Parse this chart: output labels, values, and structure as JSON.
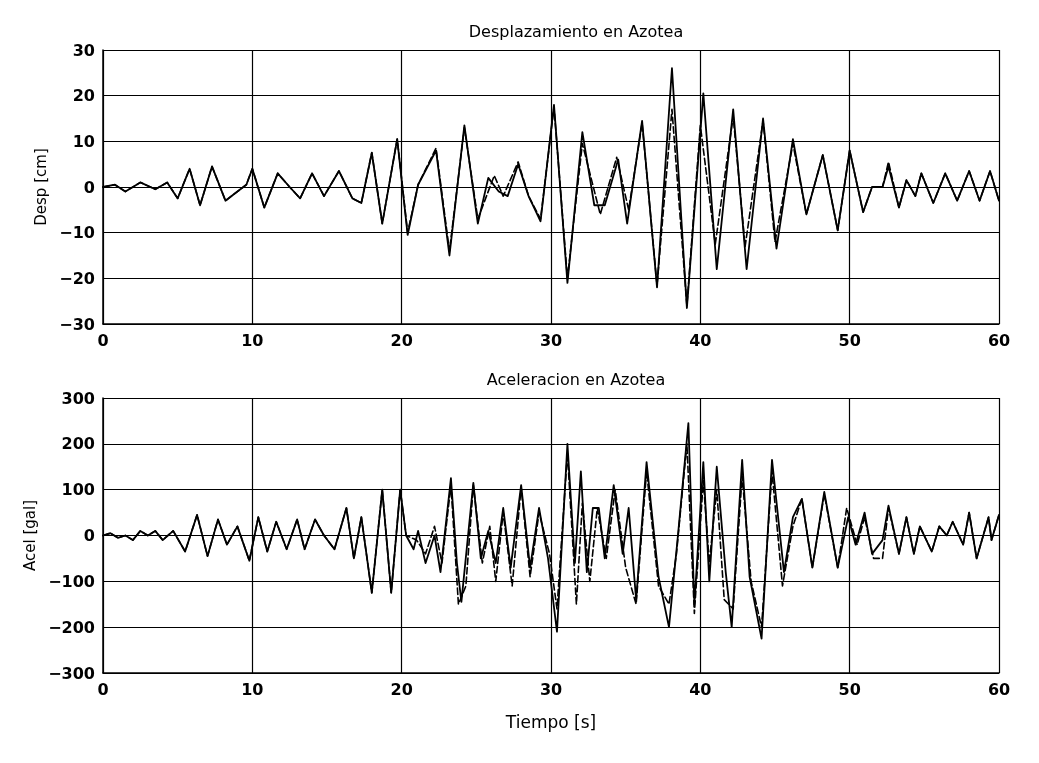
{
  "chart_data": [
    {
      "type": "line",
      "title": "Desplazamiento en Azotea",
      "ylabel": "Desp [cm]",
      "xlim": [
        0,
        60
      ],
      "xticks": [
        0,
        10,
        20,
        30,
        40,
        50,
        60
      ],
      "ylim": [
        -30,
        30
      ],
      "yticks": [
        -30,
        -20,
        -10,
        0,
        10,
        20,
        30
      ],
      "grid": true,
      "series": [
        {
          "color": "#000000",
          "line_style": "solid",
          "x": [
            0,
            0.8,
            1.5,
            2.5,
            3.5,
            4.3,
            5,
            5.8,
            6.5,
            7.3,
            8.2,
            9,
            9.6,
            10,
            10.8,
            11.7,
            12.5,
            13.2,
            14,
            14.8,
            15.8,
            16.7,
            17.3,
            18,
            18.7,
            19.7,
            20.4,
            21.1,
            22.3,
            23.2,
            24.2,
            25.1,
            25.8,
            26.5,
            27.1,
            27.8,
            28.5,
            29.3,
            30.2,
            31.1,
            32.1,
            32.9,
            33.6,
            34.5,
            35.1,
            36.1,
            37.1,
            38.1,
            39.1,
            40.2,
            41.1,
            42.2,
            43.1,
            44.2,
            45.1,
            46.2,
            47.1,
            48.2,
            49.2,
            50,
            50.9,
            51.5,
            52.2,
            52.6,
            53.3,
            53.8,
            54.4,
            54.8,
            55.6,
            56.4,
            57.2,
            58,
            58.7,
            59.4,
            60
          ],
          "values": [
            0,
            0.5,
            -1,
            1,
            -0.5,
            1,
            -2.5,
            4,
            -4,
            4.5,
            -3,
            -1,
            0.5,
            4,
            -4.5,
            3,
            0,
            -2.5,
            3,
            -2,
            3.5,
            -2.5,
            -3.5,
            7.5,
            -8,
            10.5,
            -10.5,
            0.5,
            8,
            -15,
            13.5,
            -8,
            2,
            -1,
            -2,
            5,
            -2,
            -7.5,
            18,
            -21,
            12,
            -4,
            -4,
            6,
            -8,
            14.5,
            -22,
            26,
            -26.5,
            20.5,
            -18,
            17,
            -18,
            15,
            -13.5,
            10.5,
            -6,
            7,
            -9.5,
            8,
            -5.5,
            0,
            0,
            4.5,
            -4.5,
            1.5,
            -2,
            3,
            -3.5,
            3,
            -3,
            3.5,
            -3,
            3.5,
            -3
          ]
        },
        {
          "color": "#000000",
          "line_style": "dashed",
          "x": [
            0,
            0.8,
            1.5,
            2.5,
            3.5,
            4.3,
            5,
            5.8,
            6.5,
            7.3,
            8.2,
            9,
            9.6,
            10,
            10.8,
            11.7,
            12.5,
            13.2,
            14,
            14.8,
            15.8,
            16.7,
            17.3,
            18,
            18.7,
            19.7,
            20.4,
            21.1,
            22.3,
            23.2,
            24.2,
            25.1,
            26.2,
            26.8,
            27.8,
            28.5,
            29.3,
            30.2,
            31.1,
            32.1,
            33.3,
            34.4,
            35.2,
            36.1,
            37.1,
            38.1,
            39.1,
            40,
            41,
            42.2,
            43,
            44.2,
            45,
            46.2,
            47.1,
            48.2,
            49.2,
            50,
            50.9,
            51.5,
            52.2,
            52.6,
            53.3,
            53.8,
            54.4,
            54.8,
            55.6,
            56.4,
            57.2,
            58,
            58.7,
            59.4,
            60
          ],
          "values": [
            0,
            0.5,
            -1,
            1,
            -0.5,
            1,
            -2.5,
            4,
            -4,
            4.5,
            -3,
            -1,
            0.5,
            4,
            -4.5,
            3,
            0,
            -2.5,
            3,
            -2,
            3.5,
            -2.5,
            -3.5,
            7.5,
            -8,
            10.5,
            -10,
            0.5,
            8.5,
            -14,
            13,
            -7,
            2.5,
            -2,
            5.5,
            -2,
            -7,
            17.5,
            -20,
            9.5,
            -6,
            6.5,
            -5,
            14,
            -21.5,
            17,
            -26,
            13.5,
            -12.5,
            15.5,
            -13,
            14.5,
            -12,
            9.5,
            -6,
            7,
            -9.5,
            8,
            -5.5,
            0,
            0,
            5.5,
            -4.5,
            1.5,
            -2,
            3,
            -3.5,
            3,
            -3,
            3.5,
            -3,
            3.5,
            -3
          ]
        }
      ]
    },
    {
      "type": "line",
      "title": "Aceleracion en Azotea",
      "xlabel": "Tiempo [s]",
      "ylabel": "Acel [gal]",
      "xlim": [
        0,
        60
      ],
      "xticks": [
        0,
        10,
        20,
        30,
        40,
        50,
        60
      ],
      "ylim": [
        -300,
        300
      ],
      "yticks": [
        -300,
        -200,
        -100,
        0,
        100,
        200,
        300
      ],
      "grid": true,
      "series": [
        {
          "color": "#000000",
          "line_style": "solid",
          "x": [
            0,
            0.5,
            1,
            1.5,
            2,
            2.5,
            3,
            3.5,
            4,
            4.7,
            5.5,
            6.3,
            7,
            7.7,
            8.3,
            9,
            9.8,
            10.4,
            11,
            11.6,
            12.3,
            13,
            13.5,
            14.2,
            14.8,
            15.5,
            16.3,
            16.8,
            17.3,
            18,
            18.7,
            19.3,
            19.9,
            20.3,
            20.8,
            21.1,
            21.6,
            22.2,
            22.6,
            23.3,
            23.7,
            24,
            24.8,
            25.3,
            25.8,
            26.3,
            26.8,
            27.3,
            28,
            28.6,
            29.2,
            29.8,
            30.4,
            31.1,
            31.6,
            32,
            32.4,
            32.8,
            33.2,
            33.6,
            34.2,
            34.8,
            35.2,
            35.7,
            36.4,
            37.2,
            37.9,
            38.5,
            39.2,
            39.6,
            40.2,
            40.6,
            41.1,
            41.7,
            42.1,
            42.8,
            43.3,
            44.1,
            44.8,
            45.6,
            46.2,
            46.8,
            47.5,
            48.3,
            49.2,
            49.9,
            50.4,
            51,
            51.5,
            52.2,
            52.6,
            53.3,
            53.8,
            54.3,
            54.7,
            55.5,
            56,
            56.5,
            56.9,
            57.6,
            58,
            58.5,
            59.3,
            59.5,
            60
          ],
          "values": [
            0,
            5,
            -5,
            0,
            -10,
            10,
            0,
            10,
            -10,
            10,
            -35,
            45,
            -45,
            35,
            -20,
            20,
            -55,
            40,
            -35,
            30,
            -30,
            35,
            -30,
            35,
            0,
            -30,
            60,
            -50,
            40,
            -125,
            100,
            -125,
            100,
            0,
            -30,
            10,
            -60,
            0,
            -80,
            125,
            -60,
            -145,
            115,
            -50,
            10,
            -60,
            60,
            -70,
            110,
            -70,
            60,
            -50,
            -210,
            200,
            -60,
            140,
            -80,
            60,
            60,
            -50,
            110,
            -40,
            60,
            -140,
            160,
            -90,
            -200,
            0,
            245,
            -150,
            160,
            -100,
            150,
            -80,
            -200,
            165,
            -90,
            -225,
            165,
            -80,
            40,
            80,
            -70,
            95,
            -70,
            40,
            -20,
            50,
            -40,
            -10,
            65,
            -40,
            40,
            -40,
            20,
            -35,
            20,
            0,
            30,
            -20,
            50,
            -50,
            40,
            -10,
            45
          ]
        },
        {
          "color": "#000000",
          "line_style": "dashed",
          "x": [
            0,
            0.5,
            1,
            1.5,
            2,
            2.5,
            3,
            3.5,
            4,
            4.7,
            5.5,
            6.3,
            7,
            7.7,
            8.3,
            9,
            9.8,
            10.4,
            11,
            11.6,
            12.3,
            13,
            13.5,
            14.2,
            14.8,
            15.5,
            16.3,
            16.8,
            17.3,
            18,
            18.7,
            19.3,
            19.9,
            20.3,
            21,
            21.6,
            22.2,
            22.7,
            23.3,
            23.8,
            24.3,
            24.8,
            25.4,
            25.9,
            26.3,
            26.8,
            27.4,
            28,
            28.6,
            29.2,
            29.9,
            30.4,
            31.1,
            31.7,
            32.1,
            32.6,
            33.1,
            33.7,
            34.3,
            35,
            35.7,
            36.4,
            37.2,
            37.9,
            38.4,
            39.1,
            39.6,
            40.2,
            40.6,
            41.1,
            41.6,
            42.2,
            42.8,
            43.4,
            44.1,
            44.8,
            45.5,
            46.2,
            46.8,
            47.5,
            48.3,
            49.2,
            49.8,
            50.5,
            51,
            51.6,
            52.2,
            52.6,
            53.3,
            53.8,
            54.3,
            54.7,
            55.5,
            56,
            56.5,
            56.9,
            57.6,
            58,
            58.5,
            59.3,
            59.5,
            60
          ],
          "values": [
            0,
            5,
            -5,
            0,
            -10,
            10,
            0,
            10,
            -10,
            10,
            -35,
            45,
            -45,
            35,
            -20,
            20,
            -55,
            40,
            -35,
            30,
            -30,
            35,
            -30,
            35,
            0,
            -30,
            60,
            -50,
            40,
            -125,
            100,
            -125,
            100,
            0,
            -10,
            -40,
            20,
            -60,
            110,
            -150,
            -110,
            110,
            -60,
            20,
            -100,
            50,
            -110,
            105,
            -90,
            50,
            -40,
            -160,
            180,
            -150,
            70,
            -100,
            60,
            -50,
            100,
            -70,
            -150,
            140,
            -110,
            -150,
            -40,
            200,
            -170,
            120,
            -60,
            100,
            -140,
            -160,
            130,
            -100,
            -200,
            140,
            -110,
            20,
            80,
            -70,
            90,
            -70,
            60,
            -20,
            40,
            -50,
            -50,
            60,
            -40,
            40,
            -40,
            20,
            -35,
            20,
            0,
            30,
            -20,
            50,
            -50,
            40,
            -10,
            45
          ]
        }
      ]
    }
  ]
}
